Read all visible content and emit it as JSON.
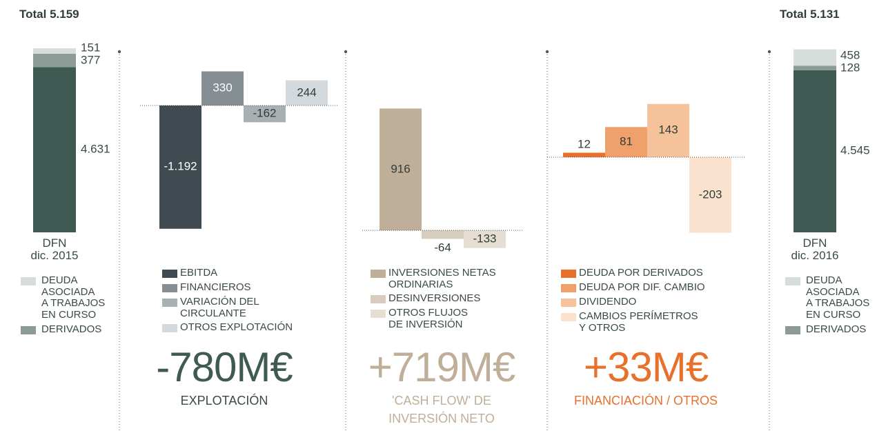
{
  "chart_data": [
    {
      "type": "stacked-bar",
      "title": "Total 5.159",
      "categories": [
        "DFN\ndic. 2015"
      ],
      "ylim": [
        0,
        5200
      ],
      "series": [
        {
          "color": "#3e5a52",
          "values": [
            4631
          ],
          "value_labels": [
            "4.631"
          ]
        },
        {
          "name": "DERIVADOS",
          "color": "#8d9b96",
          "values": [
            377
          ],
          "value_labels": [
            "377"
          ]
        },
        {
          "name": "DEUDA\nASOCIADA\nA TRABAJOS\nEN CURSO",
          "color": "#d6dddb",
          "values": [
            151
          ],
          "value_labels": [
            "151"
          ]
        }
      ]
    },
    {
      "type": "waterfall",
      "groups": [
        {
          "total": -780,
          "total_label": "-780M€",
          "label": "EXPLOTACIÓN",
          "total_color": "#3e5a52",
          "ylim": [
            -1400,
            400
          ],
          "series": [
            {
              "name": "EBITDA",
              "color": "#3f4b50",
              "values": [
                -1192
              ],
              "value_labels": [
                "-1.192"
              ]
            },
            {
              "name": "FINANCIEROS",
              "color": "#858f93",
              "values": [
                330
              ],
              "value_labels": [
                "330"
              ]
            },
            {
              "name": "VARIACIÓN DEL\nCIRCULANTE",
              "color": "#a8b0b4",
              "values": [
                -162
              ],
              "value_labels": [
                "-162"
              ]
            },
            {
              "name": "OTROS EXPLOTACIÓN",
              "color": "#d3d9dc",
              "values": [
                244
              ],
              "value_labels": [
                "244"
              ]
            }
          ]
        },
        {
          "total": 719,
          "total_label": "+719M€",
          "label": "'CASH FLOW' DE\nINVERSIÓN NETO",
          "total_color": "#bfae98",
          "ylim": [
            -150,
            1250
          ],
          "series": [
            {
              "name": "INVERSIONES NETAS\nORDINARIAS",
              "color": "#bfae98",
              "values": [
                916
              ],
              "value_labels": [
                "916"
              ]
            },
            {
              "name": "DESINVERSIONES",
              "color": "#d8ccbe",
              "values": [
                -64
              ],
              "value_labels": [
                "-64"
              ]
            },
            {
              "name": "OTROS FLUJOS\nDE INVERSIÓN",
              "color": "#e6ddd3",
              "values": [
                -133
              ],
              "value_labels": [
                "-133"
              ]
            }
          ]
        },
        {
          "total": 33,
          "total_label": "+33M€",
          "label": "FINANCIACIÓN / OTROS",
          "total_color": "#e8702a",
          "ylim": [
            -250,
            250
          ],
          "series": [
            {
              "name": "DEUDA POR DERIVADOS",
              "color": "#e8702a",
              "values": [
                12
              ],
              "value_labels": [
                "12"
              ]
            },
            {
              "name": "DEUDA POR DIF. CAMBIO",
              "color": "#f0a06b",
              "values": [
                81
              ],
              "value_labels": [
                "81"
              ]
            },
            {
              "name": "DIVIDENDO",
              "color": "#f6c29b",
              "values": [
                143
              ],
              "value_labels": [
                "143"
              ]
            },
            {
              "name": "CAMBIOS PERÍMETROS\nY OTROS",
              "color": "#fbe2cf",
              "values": [
                -203
              ],
              "value_labels": [
                "-203"
              ]
            }
          ]
        }
      ]
    },
    {
      "type": "stacked-bar",
      "title": "Total 5.131",
      "categories": [
        "DFN\ndic. 2016"
      ],
      "ylim": [
        0,
        5200
      ],
      "series": [
        {
          "color": "#3e5a52",
          "values": [
            4545
          ],
          "value_labels": [
            "4.545"
          ]
        },
        {
          "name": "DERIVADOS",
          "color": "#8d9b96",
          "values": [
            128
          ],
          "value_labels": [
            "128"
          ]
        },
        {
          "name": "DEUDA\nASOCIADA\nA TRABAJOS\nEN CURSO",
          "color": "#d6dddb",
          "values": [
            458
          ],
          "value_labels": [
            "458"
          ]
        }
      ]
    }
  ]
}
